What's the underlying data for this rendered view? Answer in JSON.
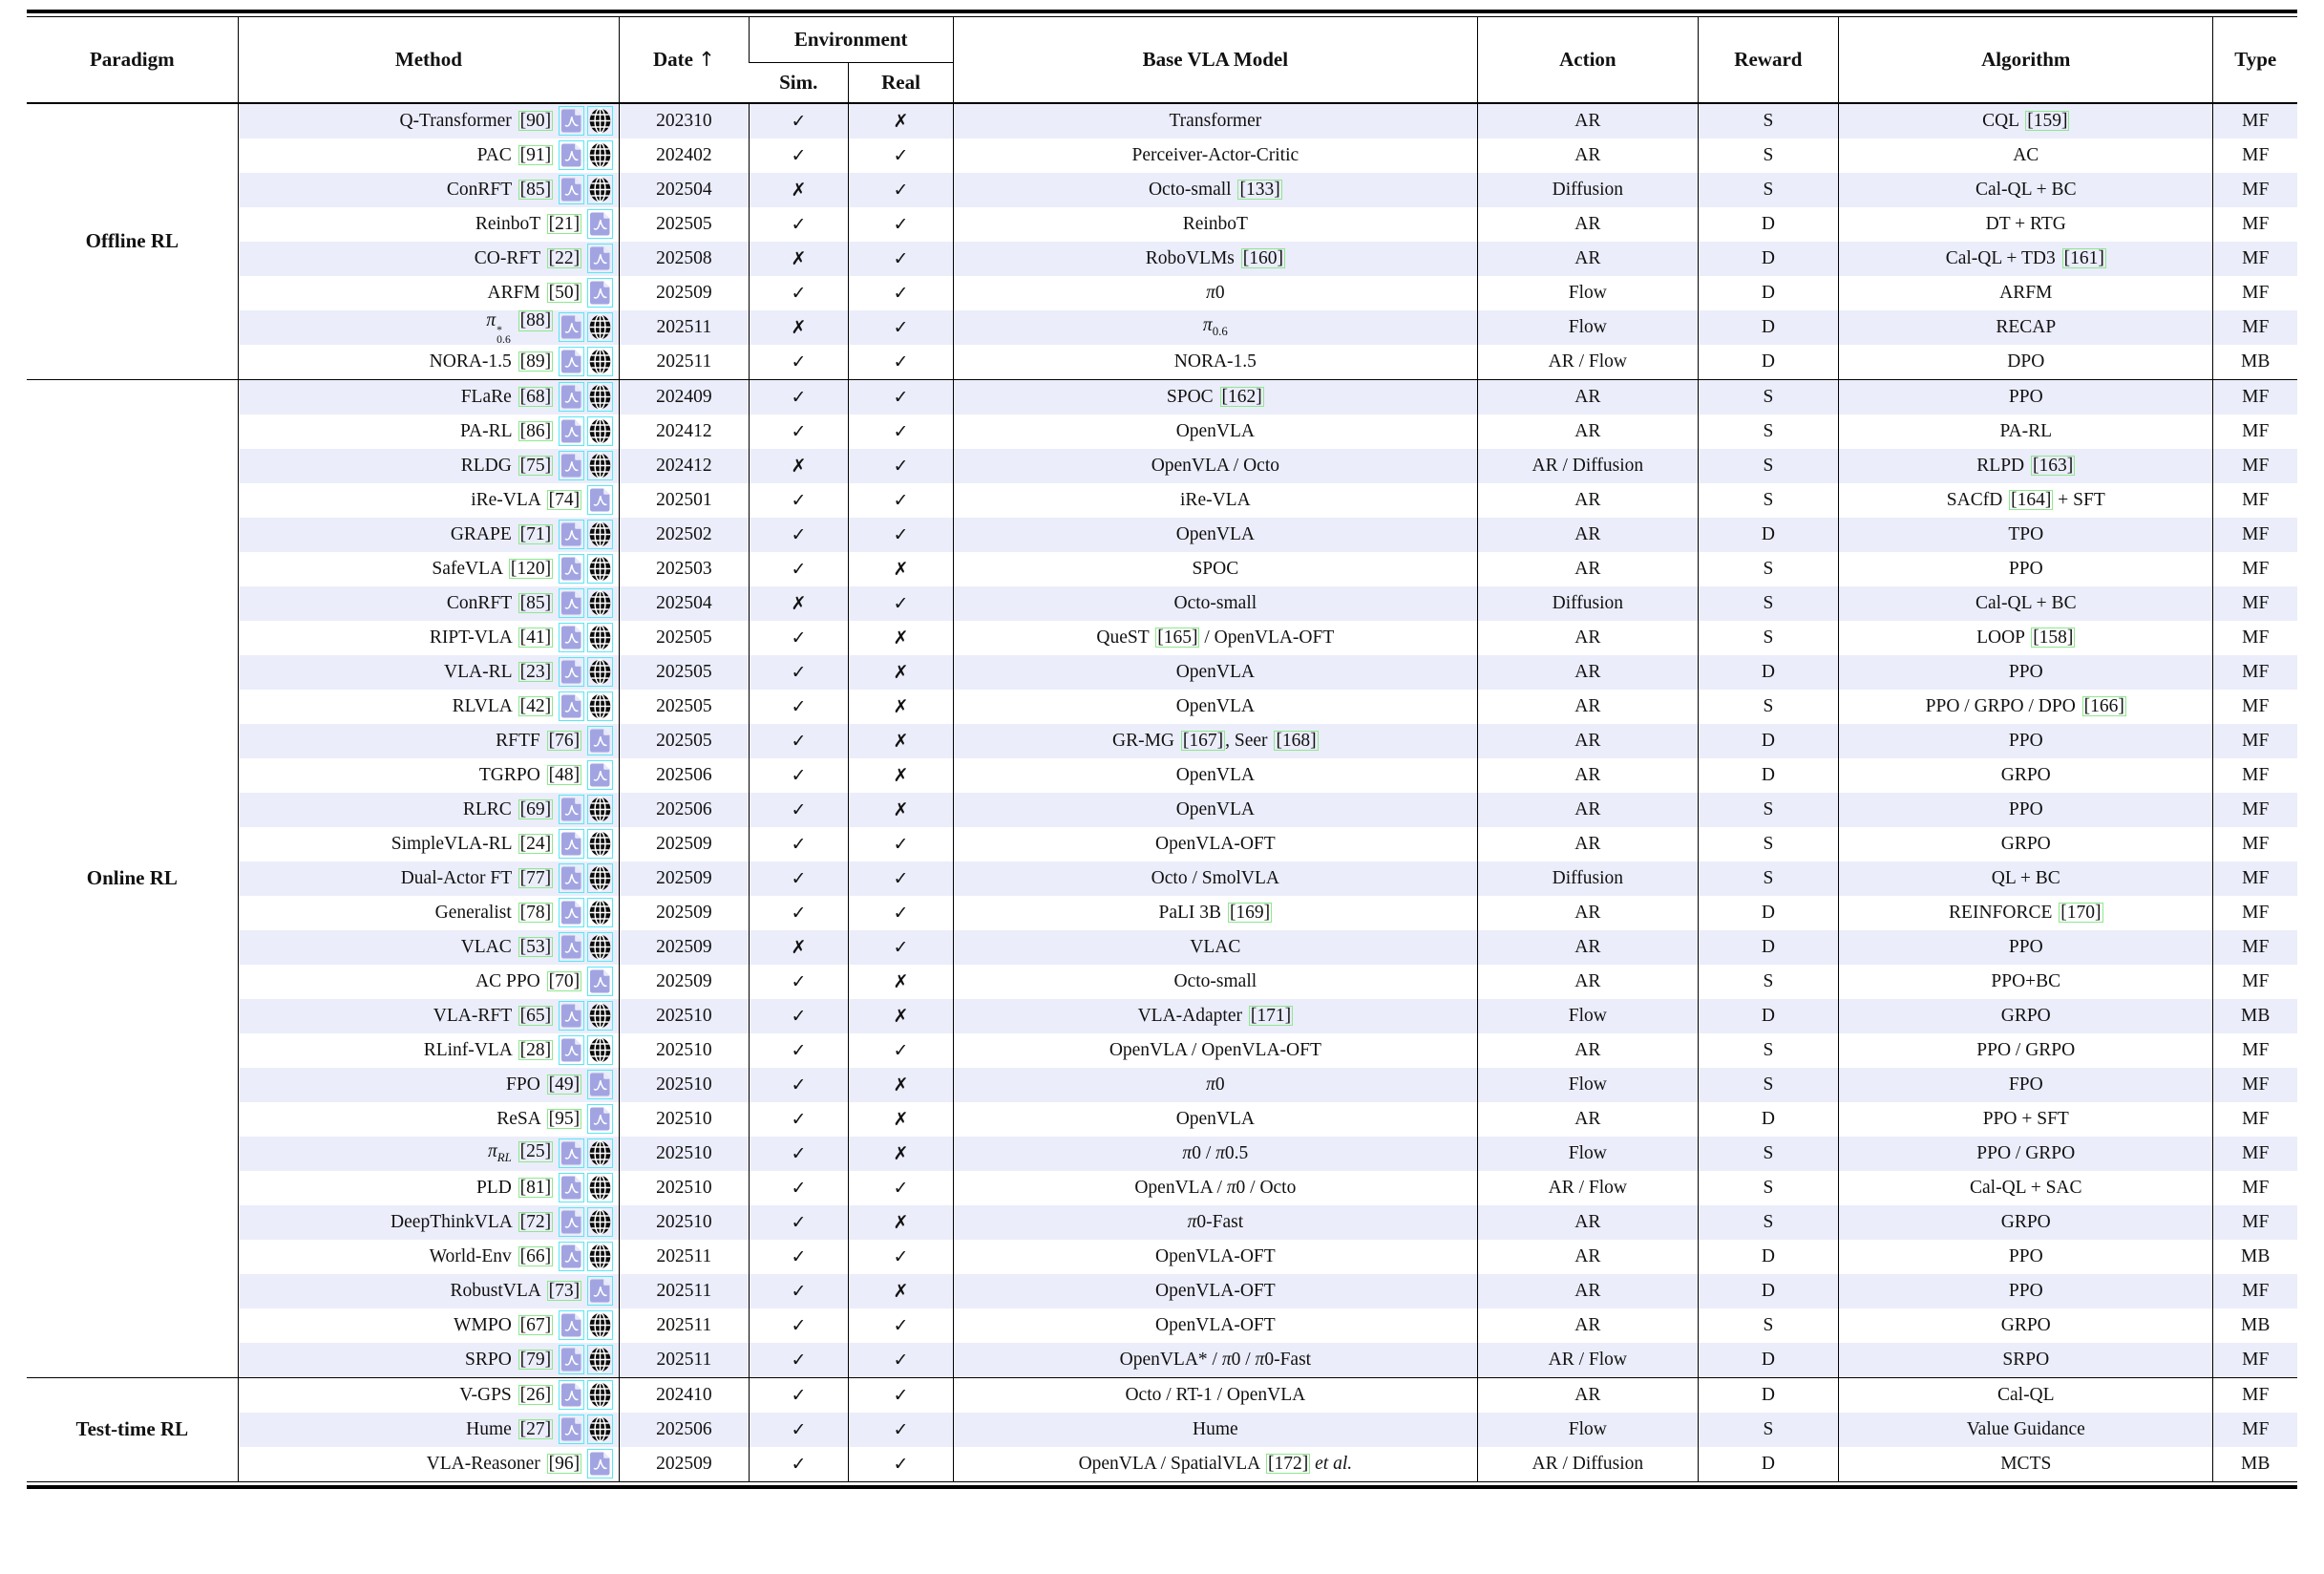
{
  "table": {
    "headers": {
      "paradigm": "Paradigm",
      "method": "Method",
      "date": "Date",
      "date_sort_arrow": "↑",
      "environment": "Environment",
      "sim": "Sim.",
      "real": "Real",
      "base": "Base VLA Model",
      "action": "Action",
      "reward": "Reward",
      "algorithm": "Algorithm",
      "type": "Type"
    },
    "marks": {
      "yes": "✓",
      "no": "✗"
    },
    "icon_names": {
      "pdf": "pdf-link-icon",
      "web": "website-link-icon"
    },
    "groups": [
      {
        "paradigm": "Offline RL",
        "rows": [
          {
            "method": "Q-Transformer [90]",
            "icons": [
              "pdf",
              "web"
            ],
            "date": "202310",
            "sim": true,
            "real": false,
            "base": "Transformer",
            "action": "AR",
            "reward": "S",
            "algo": "CQL [159]",
            "type": "MF"
          },
          {
            "method": "PAC [91]",
            "icons": [
              "pdf",
              "web"
            ],
            "date": "202402",
            "sim": true,
            "real": true,
            "base": "Perceiver-Actor-Critic",
            "action": "AR",
            "reward": "S",
            "algo": "AC",
            "type": "MF"
          },
          {
            "method": "ConRFT [85]",
            "icons": [
              "pdf",
              "web"
            ],
            "date": "202504",
            "sim": false,
            "real": true,
            "base": "Octo-small [133]",
            "action": "Diffusion",
            "reward": "S",
            "algo": "Cal-QL + BC",
            "type": "MF"
          },
          {
            "method": "ReinboT [21]",
            "icons": [
              "pdf"
            ],
            "date": "202505",
            "sim": true,
            "real": true,
            "base": "ReinboT",
            "action": "AR",
            "reward": "D",
            "algo": "DT + RTG",
            "type": "MF"
          },
          {
            "method": "CO-RFT [22]",
            "icons": [
              "pdf"
            ],
            "date": "202508",
            "sim": false,
            "real": true,
            "base": "RoboVLMs [160]",
            "action": "AR",
            "reward": "D",
            "algo": "Cal-QL + TD3 [161]",
            "type": "MF"
          },
          {
            "method": "ARFM [50]",
            "icons": [
              "pdf"
            ],
            "date": "202509",
            "sim": true,
            "real": true,
            "base": "<i>π</i>0",
            "action": "Flow",
            "reward": "D",
            "algo": "ARFM",
            "type": "MF"
          },
          {
            "method": "<i>π</i><span class='ss'><sup>*</sup><sub>0.6</sub></span> [88]",
            "icons": [
              "pdf",
              "web"
            ],
            "date": "202511",
            "sim": false,
            "real": true,
            "base": "<i>π</i><sub>0.6</sub>",
            "action": "Flow",
            "reward": "D",
            "algo": "RECAP",
            "type": "MF"
          },
          {
            "method": "NORA-1.5 [89]",
            "icons": [
              "pdf",
              "web"
            ],
            "date": "202511",
            "sim": true,
            "real": true,
            "base": "NORA-1.5",
            "action": "AR / Flow",
            "reward": "D",
            "algo": "DPO",
            "type": "MB"
          }
        ]
      },
      {
        "paradigm": "Online RL",
        "rows": [
          {
            "method": "FLaRe [68]",
            "icons": [
              "pdf",
              "web"
            ],
            "date": "202409",
            "sim": true,
            "real": true,
            "base": "SPOC [162]",
            "action": "AR",
            "reward": "S",
            "algo": "PPO",
            "type": "MF"
          },
          {
            "method": "PA-RL [86]",
            "icons": [
              "pdf",
              "web"
            ],
            "date": "202412",
            "sim": true,
            "real": true,
            "base": "OpenVLA",
            "action": "AR",
            "reward": "S",
            "algo": "PA-RL",
            "type": "MF"
          },
          {
            "method": "RLDG [75]",
            "icons": [
              "pdf",
              "web"
            ],
            "date": "202412",
            "sim": false,
            "real": true,
            "base": "OpenVLA / Octo",
            "action": "AR / Diffusion",
            "reward": "S",
            "algo": "RLPD [163]",
            "type": "MF"
          },
          {
            "method": "iRe-VLA [74]",
            "icons": [
              "pdf"
            ],
            "date": "202501",
            "sim": true,
            "real": true,
            "base": "iRe-VLA",
            "action": "AR",
            "reward": "S",
            "algo": "SACfD [164] + SFT",
            "type": "MF"
          },
          {
            "method": "GRAPE [71]",
            "icons": [
              "pdf",
              "web"
            ],
            "date": "202502",
            "sim": true,
            "real": true,
            "base": "OpenVLA",
            "action": "AR",
            "reward": "D",
            "algo": "TPO",
            "type": "MF"
          },
          {
            "method": "SafeVLA [120]",
            "icons": [
              "pdf",
              "web"
            ],
            "date": "202503",
            "sim": true,
            "real": false,
            "base": "SPOC",
            "action": "AR",
            "reward": "S",
            "algo": "PPO",
            "type": "MF"
          },
          {
            "method": "ConRFT [85]",
            "icons": [
              "pdf",
              "web"
            ],
            "date": "202504",
            "sim": false,
            "real": true,
            "base": "Octo-small",
            "action": "Diffusion",
            "reward": "S",
            "algo": "Cal-QL + BC",
            "type": "MF"
          },
          {
            "method": "RIPT-VLA [41]",
            "icons": [
              "pdf",
              "web"
            ],
            "date": "202505",
            "sim": true,
            "real": false,
            "base": "QueST [165] / OpenVLA-OFT",
            "action": "AR",
            "reward": "S",
            "algo": "LOOP [158]",
            "type": "MF"
          },
          {
            "method": "VLA-RL [23]",
            "icons": [
              "pdf",
              "web"
            ],
            "date": "202505",
            "sim": true,
            "real": false,
            "base": "OpenVLA",
            "action": "AR",
            "reward": "D",
            "algo": "PPO",
            "type": "MF"
          },
          {
            "method": "RLVLA [42]",
            "icons": [
              "pdf",
              "web"
            ],
            "date": "202505",
            "sim": true,
            "real": false,
            "base": "OpenVLA",
            "action": "AR",
            "reward": "S",
            "algo": "PPO / GRPO / DPO [166]",
            "type": "MF"
          },
          {
            "method": "RFTF [76]",
            "icons": [
              "pdf"
            ],
            "date": "202505",
            "sim": true,
            "real": false,
            "base": "GR-MG [167], Seer [168]",
            "action": "AR",
            "reward": "D",
            "algo": "PPO",
            "type": "MF"
          },
          {
            "method": "TGRPO [48]",
            "icons": [
              "pdf"
            ],
            "date": "202506",
            "sim": true,
            "real": false,
            "base": "OpenVLA",
            "action": "AR",
            "reward": "D",
            "algo": "GRPO",
            "type": "MF"
          },
          {
            "method": "RLRC [69]",
            "icons": [
              "pdf",
              "web"
            ],
            "date": "202506",
            "sim": true,
            "real": false,
            "base": "OpenVLA",
            "action": "AR",
            "reward": "S",
            "algo": "PPO",
            "type": "MF"
          },
          {
            "method": "SimpleVLA-RL [24]",
            "icons": [
              "pdf",
              "web"
            ],
            "date": "202509",
            "sim": true,
            "real": true,
            "base": "OpenVLA-OFT",
            "action": "AR",
            "reward": "S",
            "algo": "GRPO",
            "type": "MF"
          },
          {
            "method": "Dual-Actor FT [77]",
            "icons": [
              "pdf",
              "web"
            ],
            "date": "202509",
            "sim": true,
            "real": true,
            "base": "Octo / SmolVLA",
            "action": "Diffusion",
            "reward": "S",
            "algo": "QL + BC",
            "type": "MF"
          },
          {
            "method": "Generalist [78]",
            "icons": [
              "pdf",
              "web"
            ],
            "date": "202509",
            "sim": true,
            "real": true,
            "base": "PaLI 3B [169]",
            "action": "AR",
            "reward": "D",
            "algo": "REINFORCE [170]",
            "type": "MF"
          },
          {
            "method": "VLAC [53]",
            "icons": [
              "pdf",
              "web"
            ],
            "date": "202509",
            "sim": false,
            "real": true,
            "base": "VLAC",
            "action": "AR",
            "reward": "D",
            "algo": "PPO",
            "type": "MF"
          },
          {
            "method": "AC PPO [70]",
            "icons": [
              "pdf"
            ],
            "date": "202509",
            "sim": true,
            "real": false,
            "base": "Octo-small",
            "action": "AR",
            "reward": "S",
            "algo": "PPO+BC",
            "type": "MF"
          },
          {
            "method": "VLA-RFT [65]",
            "icons": [
              "pdf",
              "web"
            ],
            "date": "202510",
            "sim": true,
            "real": false,
            "base": "VLA-Adapter [171]",
            "action": "Flow",
            "reward": "D",
            "algo": "GRPO",
            "type": "MB"
          },
          {
            "method": "RLinf-VLA [28]",
            "icons": [
              "pdf",
              "web"
            ],
            "date": "202510",
            "sim": true,
            "real": true,
            "base": "OpenVLA / OpenVLA-OFT",
            "action": "AR",
            "reward": "S",
            "algo": "PPO / GRPO",
            "type": "MF"
          },
          {
            "method": "FPO [49]",
            "icons": [
              "pdf"
            ],
            "date": "202510",
            "sim": true,
            "real": false,
            "base": "<i>π</i>0",
            "action": "Flow",
            "reward": "S",
            "algo": "FPO",
            "type": "MF"
          },
          {
            "method": "ReSA [95]",
            "icons": [
              "pdf"
            ],
            "date": "202510",
            "sim": true,
            "real": false,
            "base": "OpenVLA",
            "action": "AR",
            "reward": "D",
            "algo": "PPO + SFT",
            "type": "MF"
          },
          {
            "method": "<i>π<sub>RL</sub></i> [25]",
            "icons": [
              "pdf",
              "web"
            ],
            "date": "202510",
            "sim": true,
            "real": false,
            "base": "<i>π</i>0 / <i>π</i>0.5",
            "action": "Flow",
            "reward": "S",
            "algo": "PPO / GRPO",
            "type": "MF"
          },
          {
            "method": "PLD [81]",
            "icons": [
              "pdf",
              "web"
            ],
            "date": "202510",
            "sim": true,
            "real": true,
            "base": "OpenVLA / <i>π</i>0 / Octo",
            "action": "AR / Flow",
            "reward": "S",
            "algo": "Cal-QL + SAC",
            "type": "MF"
          },
          {
            "method": "DeepThinkVLA [72]",
            "icons": [
              "pdf",
              "web"
            ],
            "date": "202510",
            "sim": true,
            "real": false,
            "base": "<i>π</i>0-Fast",
            "action": "AR",
            "reward": "S",
            "algo": "GRPO",
            "type": "MF"
          },
          {
            "method": "World-Env [66]",
            "icons": [
              "pdf",
              "web"
            ],
            "date": "202511",
            "sim": true,
            "real": true,
            "base": "OpenVLA-OFT",
            "action": "AR",
            "reward": "D",
            "algo": "PPO",
            "type": "MB"
          },
          {
            "method": "RobustVLA [73]",
            "icons": [
              "pdf"
            ],
            "date": "202511",
            "sim": true,
            "real": false,
            "base": "OpenVLA-OFT",
            "action": "AR",
            "reward": "D",
            "algo": "PPO",
            "type": "MF"
          },
          {
            "method": "WMPO [67]",
            "icons": [
              "pdf",
              "web"
            ],
            "date": "202511",
            "sim": true,
            "real": true,
            "base": "OpenVLA-OFT",
            "action": "AR",
            "reward": "S",
            "algo": "GRPO",
            "type": "MB"
          },
          {
            "method": "SRPO [79]",
            "icons": [
              "pdf",
              "web"
            ],
            "date": "202511",
            "sim": true,
            "real": true,
            "base": "OpenVLA* / <i>π</i>0 / <i>π</i>0-Fast",
            "action": "AR / Flow",
            "reward": "D",
            "algo": "SRPO",
            "type": "MF"
          }
        ]
      },
      {
        "paradigm": "Test-time RL",
        "rows": [
          {
            "method": "V-GPS [26]",
            "icons": [
              "pdf",
              "web"
            ],
            "date": "202410",
            "sim": true,
            "real": true,
            "base": "Octo / RT-1 / OpenVLA",
            "action": "AR",
            "reward": "D",
            "algo": "Cal-QL",
            "type": "MF"
          },
          {
            "method": "Hume [27]",
            "icons": [
              "pdf",
              "web"
            ],
            "date": "202506",
            "sim": true,
            "real": true,
            "base": "Hume",
            "action": "Flow",
            "reward": "S",
            "algo": "Value Guidance",
            "type": "MF"
          },
          {
            "method": "VLA-Reasoner [96]",
            "icons": [
              "pdf"
            ],
            "date": "202509",
            "sim": true,
            "real": true,
            "base": "OpenVLA / SpatialVLA [172] <i>et al.</i>",
            "action": "AR / Diffusion",
            "reward": "D",
            "algo": "MCTS",
            "type": "MB"
          }
        ]
      }
    ]
  },
  "colors": {
    "stripe": "#ebedfa",
    "citation_box_border": "#8ee88e",
    "link_box_border": "#57e7f6",
    "pdf_icon_fill": "#a2a4e2",
    "globe_icon_fill": "#0b0b0b",
    "rule": "#000000"
  }
}
